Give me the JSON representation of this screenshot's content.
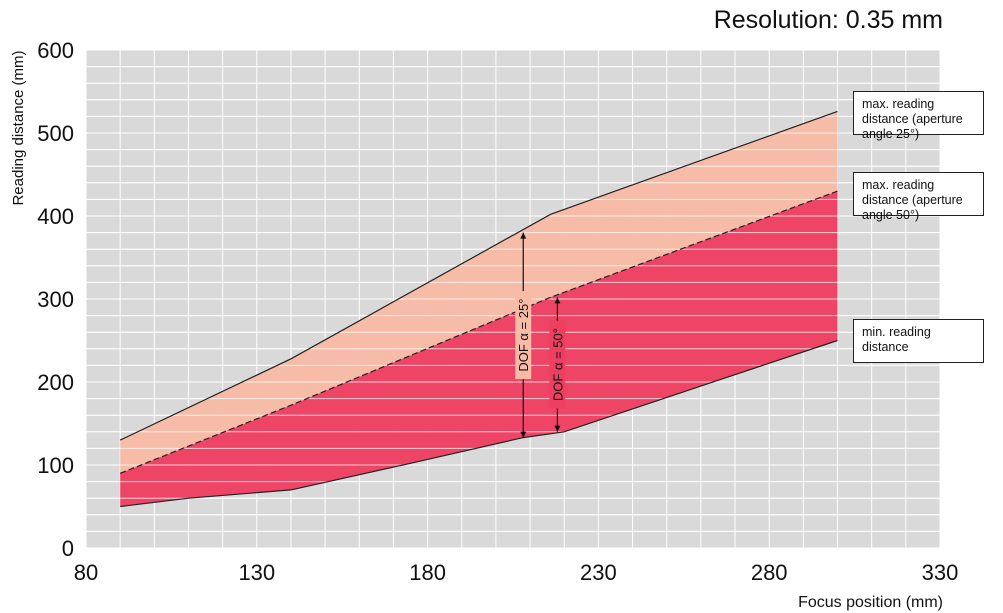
{
  "chart_data": {
    "type": "area",
    "title": "Resolution: 0.35 mm",
    "xlabel": "Focus position (mm)",
    "ylabel": "Reading distance (mm)",
    "xlim": [
      80,
      330
    ],
    "ylim": [
      0,
      600
    ],
    "x_ticks": [
      "80",
      "130",
      "180",
      "230",
      "280",
      "330"
    ],
    "y_ticks": [
      "0",
      "100",
      "200",
      "300",
      "400",
      "500",
      "600"
    ],
    "grid": true,
    "series": [
      {
        "name": "max. reading distance (aperture angle 25°)",
        "points": [
          [
            90,
            130
          ],
          [
            140,
            228
          ],
          [
            216,
            402
          ],
          [
            300,
            526
          ]
        ]
      },
      {
        "name": "max. reading distance (aperture angle 50°)",
        "points": [
          [
            90,
            90
          ],
          [
            140,
            172
          ],
          [
            216,
            302
          ],
          [
            300,
            430
          ]
        ]
      },
      {
        "name": "min. reading distance",
        "points": [
          [
            90,
            50
          ],
          [
            110,
            60
          ],
          [
            140,
            70
          ],
          [
            175,
            102
          ],
          [
            208,
            133
          ],
          [
            220,
            140
          ],
          [
            265,
            202
          ],
          [
            300,
            250
          ]
        ]
      }
    ],
    "annotations": [
      {
        "text": "DOF α = 25°",
        "x": 208,
        "y_from": 133,
        "y_to": 380
      },
      {
        "text": "DOF α = 50°",
        "x": 218,
        "y_from": 140,
        "y_to": 302
      }
    ],
    "colors": {
      "dof_25_fill": "#f7bba6",
      "dof_50_fill": "#ee3f61",
      "plot_background": "#d9d9d9",
      "grid": "#ffffff"
    }
  }
}
